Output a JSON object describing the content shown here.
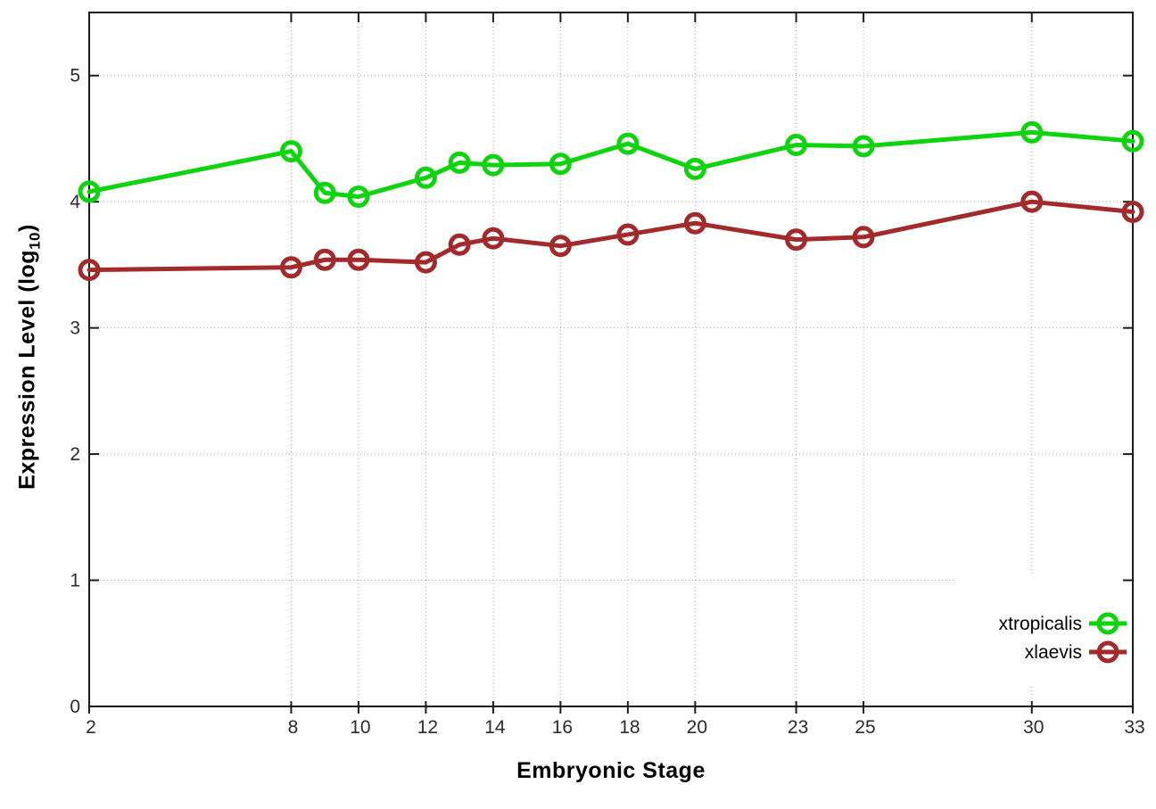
{
  "chart_data": {
    "type": "line",
    "title": "",
    "xlabel": "Embryonic Stage",
    "ylabel": "Expression Level (log10)",
    "ylabel_parts": {
      "pre": "Expression Level (log",
      "sub": "10",
      "post": ")"
    },
    "x": [
      2,
      8,
      9,
      10,
      12,
      13,
      14,
      16,
      18,
      20,
      23,
      25,
      30,
      33
    ],
    "xticks": [
      2,
      8,
      10,
      12,
      14,
      16,
      18,
      20,
      23,
      25,
      30,
      33
    ],
    "yticks": [
      0,
      1,
      2,
      3,
      4,
      5
    ],
    "xlim": [
      2,
      33
    ],
    "ylim": [
      0,
      5.5
    ],
    "grid": true,
    "legend_position": "bottom-right-inside",
    "series": [
      {
        "name": "xtropicalis",
        "color": "#0ed40e",
        "values": [
          4.08,
          4.4,
          4.07,
          4.04,
          4.19,
          4.31,
          4.29,
          4.3,
          4.46,
          4.26,
          4.45,
          4.44,
          4.55,
          4.48
        ]
      },
      {
        "name": "xlaevis",
        "color": "#a32a2a",
        "values": [
          3.46,
          3.48,
          3.54,
          3.54,
          3.52,
          3.66,
          3.71,
          3.65,
          3.74,
          3.83,
          3.7,
          3.72,
          4.0,
          3.92
        ]
      }
    ],
    "style": {
      "border_color": "#1c1c1c",
      "grid_color": "#a8a8a8",
      "tick_label_color": "#2b2b2b",
      "legend_text_color": "#000000",
      "background": "#ffffff"
    }
  }
}
